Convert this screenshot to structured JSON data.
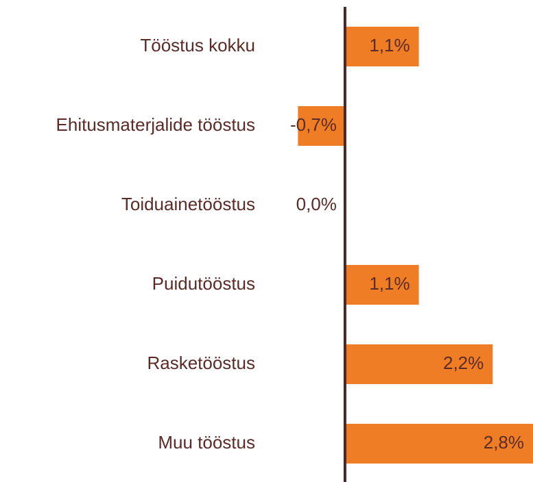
{
  "chart_data": {
    "type": "bar",
    "orientation": "horizontal",
    "categories": [
      "Tööstus kokku",
      "Ehitusmaterjalide tööstus",
      "Toiduainetööstus",
      "Puidutööstus",
      "Rasketööstus",
      "Muu tööstus"
    ],
    "values": [
      1.1,
      -0.7,
      0.0,
      1.1,
      2.2,
      2.8
    ],
    "value_labels": [
      "1,1%",
      "-0,7%",
      "0,0%",
      "1,1%",
      "2,2%",
      "2,8%"
    ],
    "color": "#ef7d26",
    "xlim": [
      -1,
      2.8
    ]
  }
}
